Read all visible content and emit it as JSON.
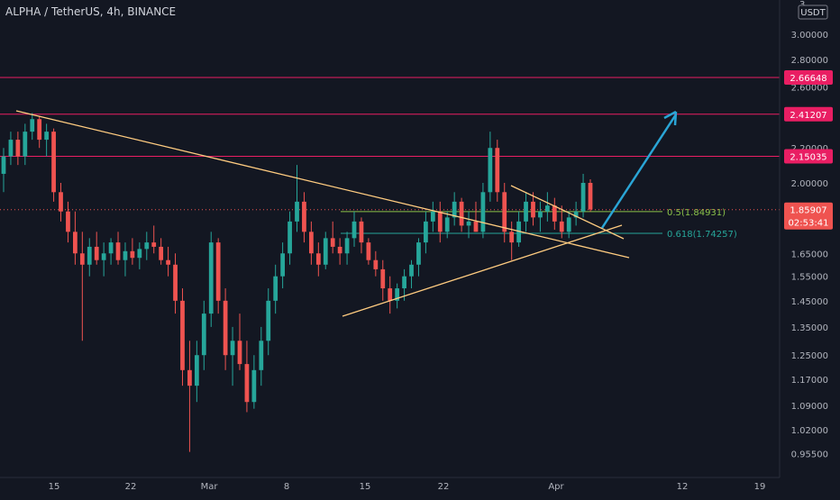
{
  "symbol_title": "ALPHA / TetherUS, 4h, BINANCE",
  "currency_label": "USDT",
  "colors": {
    "background": "#131722",
    "up": "#26a69a",
    "down": "#ef5350",
    "level_line": "#e91e63",
    "trendline": "#ffcc80",
    "arrow": "#2aa5d6",
    "axis_text": "#b2b5be"
  },
  "chart_data": {
    "type": "candlestick",
    "title": "ALPHA / TetherUS, 4h, BINANCE",
    "ylim": [
      0.93,
      3.3
    ],
    "y_scale": "log",
    "grid": false,
    "y_ticks": [
      "3.00000",
      "2.80000",
      "2.60000",
      "2.40000",
      "2.20000",
      "2.00000",
      "1.65000",
      "1.55000",
      "1.45000",
      "1.35000",
      "1.25000",
      "1.17000",
      "1.09000",
      "1.02000",
      "0.95500"
    ],
    "y_top_partial_tick": "3",
    "x_ticks": [
      "15",
      "22",
      "Mar",
      "8",
      "15",
      "22",
      "Apr",
      "12",
      "19"
    ],
    "horizontal_levels": [
      {
        "value": 2.66648,
        "label": "2.66648"
      },
      {
        "value": 2.41207,
        "label": "2.41207"
      },
      {
        "value": 2.15035,
        "label": "2.15035"
      }
    ],
    "fib_levels": [
      {
        "value": 1.84931,
        "label": "0.5(1.84931)"
      },
      {
        "value": 1.74257,
        "label": "0.618(1.74257)"
      }
    ],
    "last_price": {
      "value": 1.85907,
      "label": "1.85907",
      "countdown": "02:53:41"
    },
    "candles": [
      [
        2.05,
        2.2,
        1.95,
        2.15
      ],
      [
        2.15,
        2.3,
        2.1,
        2.25
      ],
      [
        2.25,
        2.3,
        2.1,
        2.15
      ],
      [
        2.15,
        2.35,
        2.1,
        2.3
      ],
      [
        2.3,
        2.42,
        2.25,
        2.38
      ],
      [
        2.38,
        2.4,
        2.2,
        2.25
      ],
      [
        2.25,
        2.35,
        2.15,
        2.3
      ],
      [
        2.3,
        2.32,
        1.9,
        1.95
      ],
      [
        1.95,
        2.0,
        1.8,
        1.85
      ],
      [
        1.85,
        1.9,
        1.7,
        1.75
      ],
      [
        1.75,
        1.85,
        1.6,
        1.65
      ],
      [
        1.65,
        1.75,
        1.3,
        1.6
      ],
      [
        1.6,
        1.72,
        1.55,
        1.68
      ],
      [
        1.68,
        1.75,
        1.6,
        1.62
      ],
      [
        1.62,
        1.7,
        1.55,
        1.65
      ],
      [
        1.65,
        1.72,
        1.6,
        1.7
      ],
      [
        1.7,
        1.75,
        1.6,
        1.62
      ],
      [
        1.62,
        1.7,
        1.55,
        1.66
      ],
      [
        1.66,
        1.72,
        1.6,
        1.63
      ],
      [
        1.63,
        1.7,
        1.58,
        1.67
      ],
      [
        1.67,
        1.75,
        1.62,
        1.7
      ],
      [
        1.7,
        1.78,
        1.65,
        1.68
      ],
      [
        1.68,
        1.72,
        1.6,
        1.62
      ],
      [
        1.62,
        1.68,
        1.55,
        1.6
      ],
      [
        1.6,
        1.65,
        1.4,
        1.45
      ],
      [
        1.45,
        1.5,
        1.15,
        1.2
      ],
      [
        1.2,
        1.3,
        0.96,
        1.15
      ],
      [
        1.15,
        1.3,
        1.1,
        1.25
      ],
      [
        1.25,
        1.45,
        1.2,
        1.4
      ],
      [
        1.4,
        1.75,
        1.35,
        1.7
      ],
      [
        1.7,
        1.72,
        1.4,
        1.45
      ],
      [
        1.45,
        1.5,
        1.2,
        1.25
      ],
      [
        1.25,
        1.35,
        1.15,
        1.3
      ],
      [
        1.3,
        1.4,
        1.2,
        1.22
      ],
      [
        1.22,
        1.3,
        1.07,
        1.1
      ],
      [
        1.1,
        1.25,
        1.08,
        1.2
      ],
      [
        1.2,
        1.35,
        1.15,
        1.3
      ],
      [
        1.3,
        1.5,
        1.25,
        1.45
      ],
      [
        1.45,
        1.6,
        1.4,
        1.55
      ],
      [
        1.55,
        1.7,
        1.5,
        1.65
      ],
      [
        1.65,
        1.85,
        1.6,
        1.8
      ],
      [
        1.8,
        2.1,
        1.75,
        1.9
      ],
      [
        1.9,
        1.95,
        1.7,
        1.75
      ],
      [
        1.75,
        1.8,
        1.6,
        1.65
      ],
      [
        1.65,
        1.7,
        1.55,
        1.6
      ],
      [
        1.6,
        1.75,
        1.58,
        1.72
      ],
      [
        1.72,
        1.8,
        1.65,
        1.68
      ],
      [
        1.68,
        1.72,
        1.6,
        1.65
      ],
      [
        1.65,
        1.75,
        1.6,
        1.72
      ],
      [
        1.72,
        1.85,
        1.68,
        1.8
      ],
      [
        1.8,
        1.82,
        1.65,
        1.7
      ],
      [
        1.7,
        1.72,
        1.6,
        1.62
      ],
      [
        1.62,
        1.66,
        1.55,
        1.58
      ],
      [
        1.58,
        1.62,
        1.45,
        1.5
      ],
      [
        1.5,
        1.55,
        1.4,
        1.45
      ],
      [
        1.45,
        1.52,
        1.42,
        1.5
      ],
      [
        1.5,
        1.58,
        1.45,
        1.55
      ],
      [
        1.55,
        1.62,
        1.5,
        1.6
      ],
      [
        1.6,
        1.72,
        1.55,
        1.7
      ],
      [
        1.7,
        1.85,
        1.65,
        1.8
      ],
      [
        1.8,
        1.9,
        1.75,
        1.85
      ],
      [
        1.85,
        1.9,
        1.7,
        1.75
      ],
      [
        1.75,
        1.85,
        1.72,
        1.82
      ],
      [
        1.82,
        1.95,
        1.78,
        1.9
      ],
      [
        1.9,
        1.92,
        1.75,
        1.78
      ],
      [
        1.78,
        1.85,
        1.72,
        1.8
      ],
      [
        1.8,
        1.9,
        1.75,
        1.75
      ],
      [
        1.75,
        2.0,
        1.72,
        1.95
      ],
      [
        1.95,
        2.3,
        1.9,
        2.2
      ],
      [
        2.2,
        2.25,
        1.9,
        1.95
      ],
      [
        1.95,
        2.0,
        1.7,
        1.75
      ],
      [
        1.75,
        1.8,
        1.62,
        1.7
      ],
      [
        1.7,
        1.85,
        1.68,
        1.8
      ],
      [
        1.8,
        1.95,
        1.75,
        1.9
      ],
      [
        1.9,
        1.95,
        1.78,
        1.82
      ],
      [
        1.82,
        1.9,
        1.75,
        1.85
      ],
      [
        1.85,
        1.95,
        1.8,
        1.88
      ],
      [
        1.88,
        1.92,
        1.76,
        1.8
      ],
      [
        1.8,
        1.88,
        1.72,
        1.75
      ],
      [
        1.75,
        1.85,
        1.72,
        1.82
      ],
      [
        1.82,
        1.9,
        1.78,
        1.85
      ],
      [
        1.85,
        2.05,
        1.82,
        2.0
      ],
      [
        2.0,
        2.02,
        1.85,
        1.86
      ]
    ]
  }
}
